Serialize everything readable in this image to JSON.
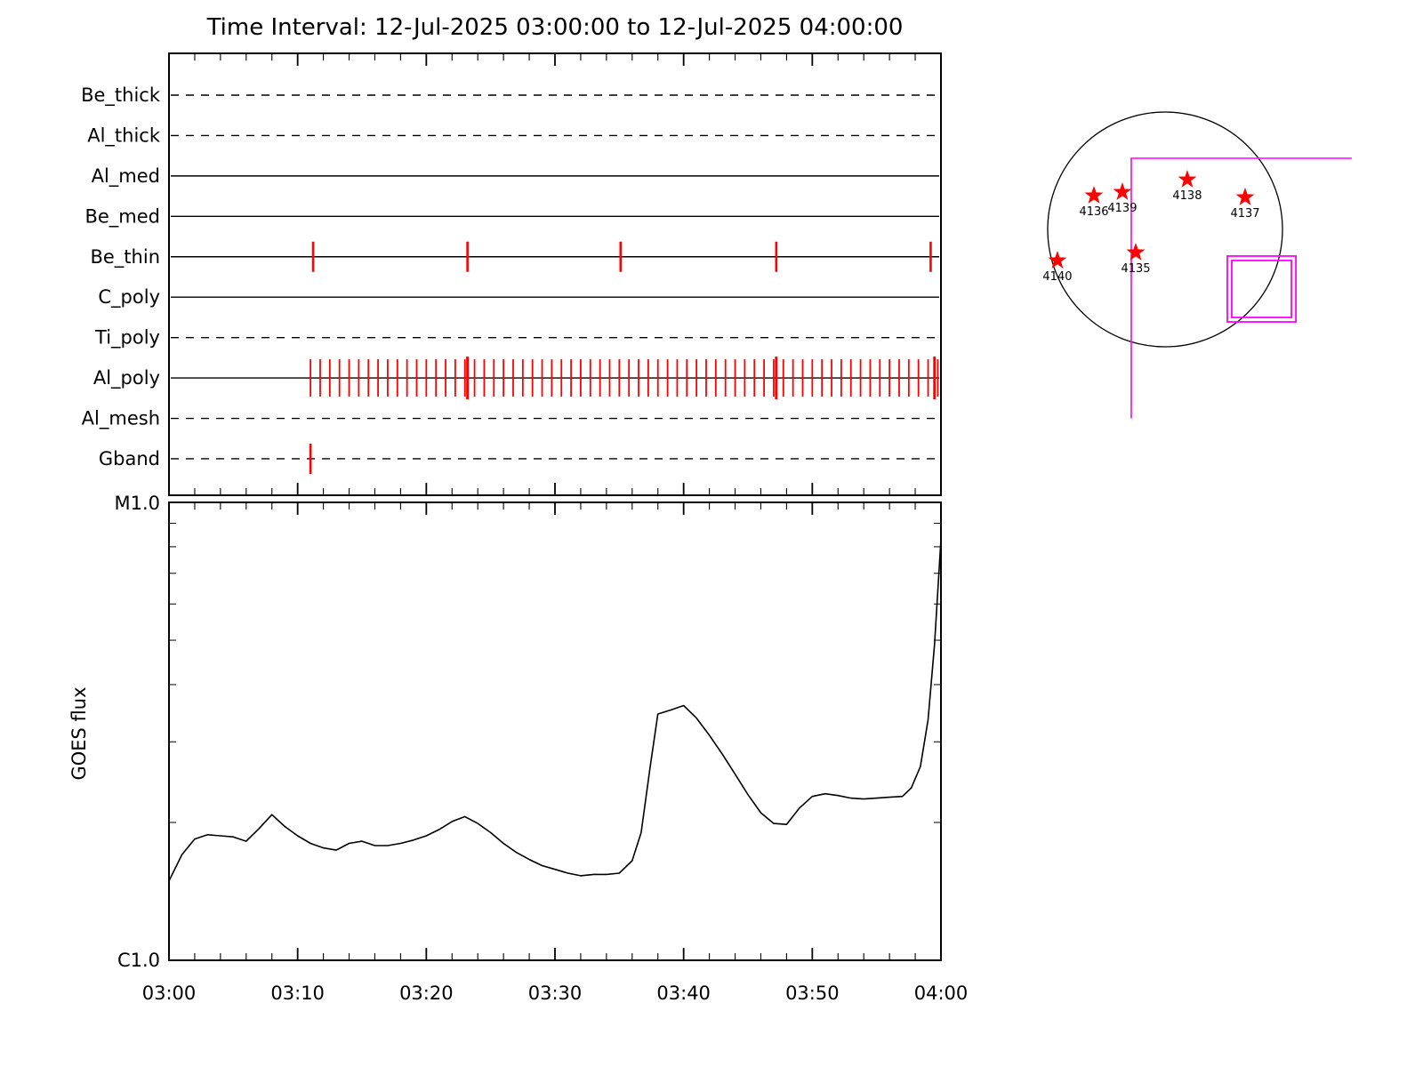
{
  "title": "Time Interval: 12-Jul-2025 03:00:00 to 12-Jul-2025 04:00:00",
  "colors": {
    "foreground": "#000000",
    "background": "#ffffff",
    "exposure_tick": "#ff0000",
    "active_region": "#ff0000",
    "fov": "#ff00ff"
  },
  "chart_data": [
    {
      "type": "timeline",
      "name": "xrt-filter-timeline",
      "x_range_minutes": [
        0,
        60
      ],
      "x_start_time": "03:00",
      "x_end_time": "04:00",
      "channels": [
        {
          "label": "Be_thick",
          "line_style": "dashed",
          "exposures": []
        },
        {
          "label": "Al_thick",
          "line_style": "dashed",
          "exposures": []
        },
        {
          "label": "Al_med",
          "line_style": "solid",
          "exposures": []
        },
        {
          "label": "Be_med",
          "line_style": "solid",
          "exposures": []
        },
        {
          "label": "Be_thin",
          "line_style": "solid",
          "exposures": [
            11.2,
            23.2,
            35.1,
            47.2,
            59.2
          ]
        },
        {
          "label": "C_poly",
          "line_style": "solid",
          "exposures": []
        },
        {
          "label": "Ti_poly",
          "line_style": "dashed",
          "exposures": []
        },
        {
          "label": "Al_poly",
          "line_style": "solid",
          "exposures": [],
          "exposure_train": {
            "start": 11.0,
            "end": 59.75,
            "step": 0.75
          },
          "major_exposures": [
            23.2,
            47.2,
            59.5
          ]
        },
        {
          "label": "Al_mesh",
          "line_style": "dashed",
          "exposures": []
        },
        {
          "label": "Gband",
          "line_style": "dashed",
          "exposures": [
            11.0
          ]
        }
      ]
    },
    {
      "type": "line",
      "name": "goes-flux",
      "ylabel": "GOES flux",
      "y_axis": {
        "scale": "log",
        "top_label": "M1.0",
        "bottom_label": "C1.0",
        "range_c_units": [
          1,
          10
        ]
      },
      "x_axis": {
        "tick_labels": [
          "03:00",
          "03:10",
          "03:20",
          "03:30",
          "03:40",
          "03:50",
          "04:00"
        ],
        "major_interval_min": 10,
        "minor_interval_min": 2
      },
      "series": [
        {
          "name": "GOES flux",
          "t_minutes": [
            0,
            1,
            2,
            3,
            4,
            5,
            6,
            7,
            8,
            9,
            10,
            11,
            12,
            13,
            14,
            15,
            16,
            17,
            18,
            19,
            20,
            21,
            22,
            23,
            24,
            25,
            26,
            27,
            28,
            29,
            30,
            31,
            32,
            33,
            34,
            35,
            36,
            36.7,
            37.4,
            38,
            39,
            40,
            41,
            42,
            43,
            44,
            45,
            46,
            47,
            48,
            49,
            50,
            51,
            52,
            53,
            54,
            55,
            56,
            57,
            57.7,
            58.4,
            59,
            59.5,
            60
          ],
          "flux_c_units": [
            1.49,
            1.7,
            1.84,
            1.88,
            1.87,
            1.86,
            1.82,
            1.94,
            2.08,
            1.96,
            1.87,
            1.8,
            1.76,
            1.74,
            1.8,
            1.82,
            1.78,
            1.78,
            1.8,
            1.83,
            1.87,
            1.93,
            2.01,
            2.06,
            1.99,
            1.9,
            1.8,
            1.72,
            1.66,
            1.61,
            1.58,
            1.55,
            1.53,
            1.54,
            1.54,
            1.55,
            1.65,
            1.9,
            2.65,
            3.45,
            3.52,
            3.6,
            3.38,
            3.1,
            2.82,
            2.55,
            2.3,
            2.1,
            1.99,
            1.98,
            2.15,
            2.28,
            2.31,
            2.29,
            2.26,
            2.25,
            2.26,
            2.27,
            2.28,
            2.38,
            2.65,
            3.35,
            4.9,
            8.3
          ]
        }
      ]
    },
    {
      "type": "solar-map",
      "name": "solar-disk",
      "active_regions": [
        {
          "label": "4136",
          "x_r": -0.606,
          "y_r": -0.288
        },
        {
          "label": "4139",
          "x_r": -0.364,
          "y_r": -0.318
        },
        {
          "label": "4138",
          "x_r": 0.189,
          "y_r": -0.424
        },
        {
          "label": "4137",
          "x_r": 0.682,
          "y_r": -0.273
        },
        {
          "label": "4140",
          "x_r": -0.917,
          "y_r": 0.265
        },
        {
          "label": "4135",
          "x_r": -0.25,
          "y_r": 0.197
        }
      ],
      "fov_box": {
        "x1_r": 0.53,
        "y1_r": 0.227,
        "x2_r": 1.114,
        "y2_r": 0.788,
        "double_line": true
      },
      "fov_corner": {
        "corner_x_r": -0.288,
        "corner_y_r": -0.606,
        "right_extent_r": 1.59,
        "down_extent_r": 1.61
      }
    }
  ]
}
